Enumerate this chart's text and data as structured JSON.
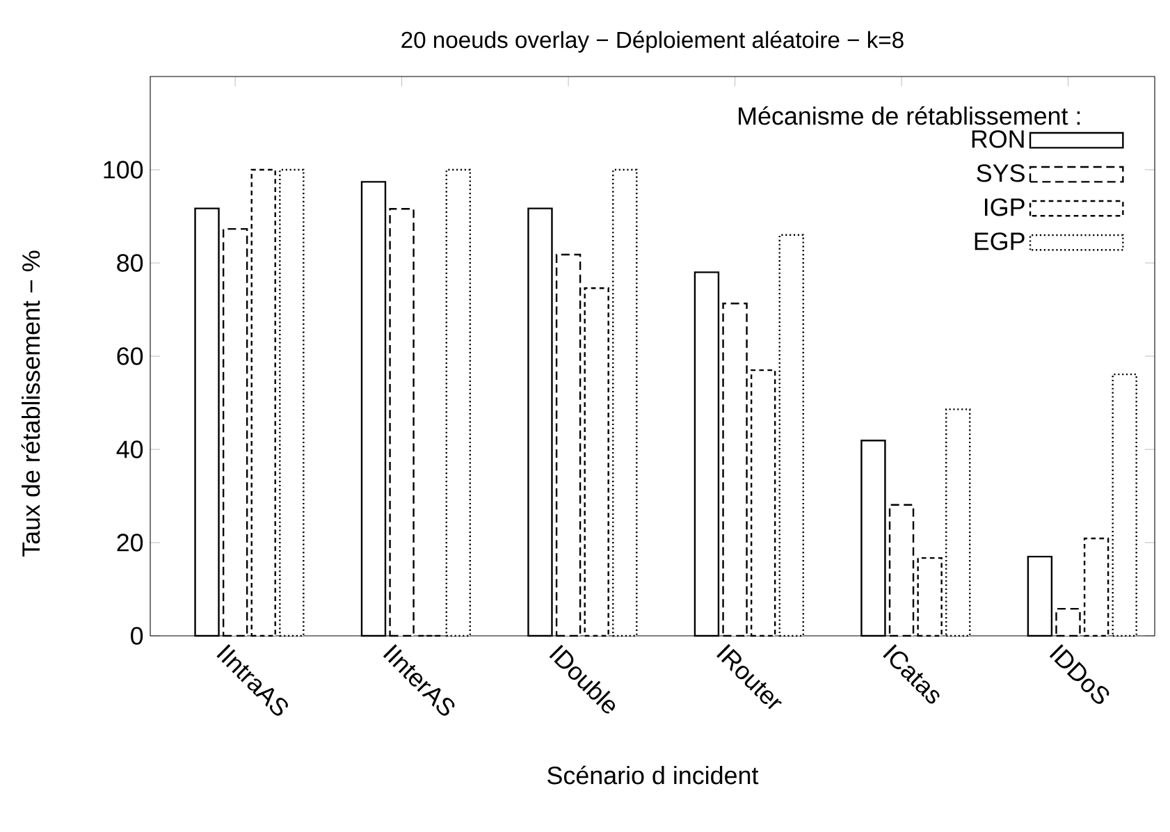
{
  "chart_data": {
    "type": "bar",
    "title": "20 noeuds overlay − Déploiement aléatoire − k=8",
    "xlabel": "Scénario d incident",
    "ylabel": "Taux de rétablissement − %",
    "legend_title": "Mécanisme de rétablissement :",
    "legend": "top right",
    "grid": false,
    "categories": [
      "IIntraAS",
      "IInterAS",
      "IDouble",
      "IRouter",
      "ICatas",
      "IDDoS"
    ],
    "ylim": [
      0,
      120
    ],
    "yticks": [
      0,
      20,
      40,
      60,
      80,
      100
    ],
    "series": [
      {
        "name": "RON",
        "color": "#000000",
        "line_style": "solid",
        "values": [
          91.7,
          97.4,
          91.7,
          78.0,
          41.9,
          17.0
        ]
      },
      {
        "name": "SYS",
        "color": "#000000",
        "line_style": "dashed",
        "values": [
          87.3,
          91.6,
          81.8,
          71.3,
          28.1,
          5.8
        ]
      },
      {
        "name": "IGP",
        "color": "#000000",
        "line_style": "dashed",
        "values": [
          100,
          0,
          74.6,
          57.0,
          16.7,
          20.9
        ]
      },
      {
        "name": "EGP",
        "color": "#000000",
        "line_style": "dotted",
        "values": [
          100,
          100,
          100,
          86.0,
          48.6,
          56.1
        ]
      }
    ]
  }
}
